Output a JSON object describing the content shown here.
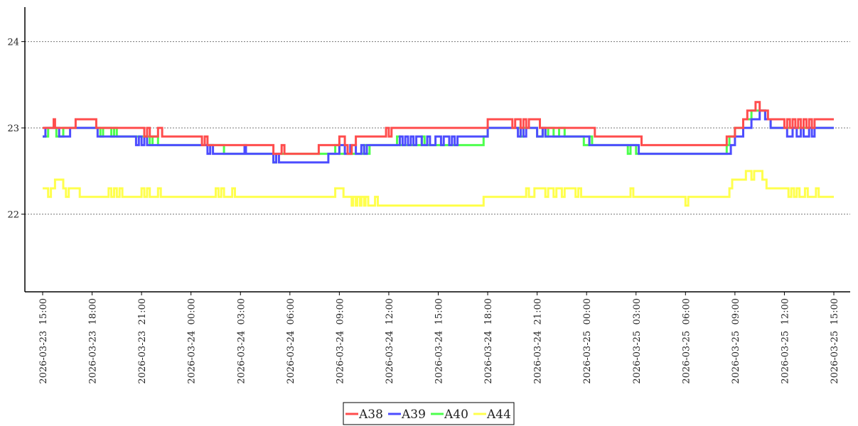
{
  "chart_data": {
    "type": "line",
    "title": "",
    "xlabel": "",
    "ylabel": "",
    "ylim": [
      21.1,
      24.4
    ],
    "yticks": [
      22,
      23,
      24
    ],
    "grid": true,
    "legend_position": "bottom-center",
    "x_tick_labels": [
      "2026-03-23  15:00",
      "2026-03-23  18:00",
      "2026-03-23  21:00",
      "2026-03-24  00:00",
      "2026-03-24  03:00",
      "2026-03-24  06:00",
      "2026-03-24  09:00",
      "2026-03-24  12:00",
      "2026-03-24  15:00",
      "2026-03-24  18:00",
      "2026-03-24  21:00",
      "2026-03-25  00:00",
      "2026-03-25  03:00",
      "2026-03-25  06:00",
      "2026-03-25  09:00",
      "2026-03-25  12:00",
      "2026-03-25  15:00"
    ],
    "series": [
      {
        "name": "A44",
        "color": "#ffff4d",
        "points": [
          [
            "2026-03-23 15:00",
            22.3
          ],
          [
            "2026-03-23 15:20",
            22.2
          ],
          [
            "2026-03-23 15:30",
            22.3
          ],
          [
            "2026-03-23 15:45",
            22.4
          ],
          [
            "2026-03-23 16:15",
            22.3
          ],
          [
            "2026-03-23 16:25",
            22.2
          ],
          [
            "2026-03-23 16:35",
            22.3
          ],
          [
            "2026-03-23 17:15",
            22.2
          ],
          [
            "2026-03-23 19:00",
            22.3
          ],
          [
            "2026-03-23 19:10",
            22.2
          ],
          [
            "2026-03-23 19:20",
            22.3
          ],
          [
            "2026-03-23 19:30",
            22.2
          ],
          [
            "2026-03-23 19:40",
            22.3
          ],
          [
            "2026-03-23 19:50",
            22.2
          ],
          [
            "2026-03-23 21:00",
            22.3
          ],
          [
            "2026-03-23 21:10",
            22.2
          ],
          [
            "2026-03-23 21:20",
            22.3
          ],
          [
            "2026-03-23 21:30",
            22.2
          ],
          [
            "2026-03-23 22:00",
            22.3
          ],
          [
            "2026-03-23 22:10",
            22.2
          ],
          [
            "2026-03-24 01:30",
            22.3
          ],
          [
            "2026-03-24 01:40",
            22.2
          ],
          [
            "2026-03-24 01:50",
            22.3
          ],
          [
            "2026-03-24 02:00",
            22.2
          ],
          [
            "2026-03-24 02:30",
            22.3
          ],
          [
            "2026-03-24 02:40",
            22.2
          ],
          [
            "2026-03-24 08:45",
            22.3
          ],
          [
            "2026-03-24 09:15",
            22.2
          ],
          [
            "2026-03-24 09:45",
            22.1
          ],
          [
            "2026-03-24 09:50",
            22.2
          ],
          [
            "2026-03-24 10:00",
            22.1
          ],
          [
            "2026-03-24 10:05",
            22.2
          ],
          [
            "2026-03-24 10:15",
            22.1
          ],
          [
            "2026-03-24 10:20",
            22.2
          ],
          [
            "2026-03-24 10:30",
            22.1
          ],
          [
            "2026-03-24 10:35",
            22.2
          ],
          [
            "2026-03-24 10:45",
            22.1
          ],
          [
            "2026-03-24 11:00",
            22.1
          ],
          [
            "2026-03-24 11:10",
            22.2
          ],
          [
            "2026-03-24 11:20",
            22.1
          ],
          [
            "2026-03-24 17:45",
            22.2
          ],
          [
            "2026-03-24 20:20",
            22.3
          ],
          [
            "2026-03-24 20:30",
            22.2
          ],
          [
            "2026-03-24 20:50",
            22.3
          ],
          [
            "2026-03-24 21:30",
            22.2
          ],
          [
            "2026-03-24 21:40",
            22.3
          ],
          [
            "2026-03-24 22:00",
            22.2
          ],
          [
            "2026-03-24 22:10",
            22.3
          ],
          [
            "2026-03-24 22:30",
            22.2
          ],
          [
            "2026-03-24 22:40",
            22.3
          ],
          [
            "2026-03-24 23:20",
            22.2
          ],
          [
            "2026-03-24 23:30",
            22.3
          ],
          [
            "2026-03-24 23:40",
            22.2
          ],
          [
            "2026-03-25 02:40",
            22.3
          ],
          [
            "2026-03-25 02:50",
            22.2
          ],
          [
            "2026-03-25 06:00",
            22.1
          ],
          [
            "2026-03-25 06:10",
            22.2
          ],
          [
            "2026-03-25 08:40",
            22.3
          ],
          [
            "2026-03-25 08:50",
            22.4
          ],
          [
            "2026-03-25 09:40",
            22.5
          ],
          [
            "2026-03-25 10:00",
            22.4
          ],
          [
            "2026-03-25 10:10",
            22.5
          ],
          [
            "2026-03-25 10:40",
            22.4
          ],
          [
            "2026-03-25 10:55",
            22.3
          ],
          [
            "2026-03-25 12:15",
            22.2
          ],
          [
            "2026-03-25 12:25",
            22.3
          ],
          [
            "2026-03-25 12:35",
            22.2
          ],
          [
            "2026-03-25 12:45",
            22.3
          ],
          [
            "2026-03-25 12:55",
            22.2
          ],
          [
            "2026-03-25 13:15",
            22.3
          ],
          [
            "2026-03-25 13:25",
            22.2
          ],
          [
            "2026-03-25 13:55",
            22.3
          ],
          [
            "2026-03-25 14:05",
            22.2
          ],
          [
            "2026-03-25 15:00",
            22.2
          ]
        ]
      },
      {
        "name": "A40",
        "color": "#4dff4d",
        "points": [
          [
            "2026-03-23 15:00",
            22.9
          ],
          [
            "2026-03-23 15:20",
            23.0
          ],
          [
            "2026-03-23 15:50",
            22.9
          ],
          [
            "2026-03-23 16:15",
            23.0
          ],
          [
            "2026-03-23 18:30",
            22.9
          ],
          [
            "2026-03-23 18:40",
            23.0
          ],
          [
            "2026-03-23 19:10",
            22.9
          ],
          [
            "2026-03-23 19:20",
            23.0
          ],
          [
            "2026-03-23 19:30",
            22.9
          ],
          [
            "2026-03-23 21:30",
            22.8
          ],
          [
            "2026-03-23 21:40",
            22.9
          ],
          [
            "2026-03-23 22:00",
            22.8
          ],
          [
            "2026-03-24 02:00",
            22.7
          ],
          [
            "2026-03-24 05:00",
            22.6
          ],
          [
            "2026-03-24 05:10",
            22.7
          ],
          [
            "2026-03-24 08:45",
            22.8
          ],
          [
            "2026-03-24 09:00",
            22.7
          ],
          [
            "2026-03-24 10:30",
            22.8
          ],
          [
            "2026-03-24 10:40",
            22.7
          ],
          [
            "2026-03-24 10:50",
            22.8
          ],
          [
            "2026-03-24 12:30",
            22.9
          ],
          [
            "2026-03-24 12:40",
            22.8
          ],
          [
            "2026-03-24 14:00",
            22.9
          ],
          [
            "2026-03-24 14:10",
            22.8
          ],
          [
            "2026-03-24 17:45",
            22.9
          ],
          [
            "2026-03-24 18:00",
            23.0
          ],
          [
            "2026-03-24 20:00",
            22.9
          ],
          [
            "2026-03-24 20:10",
            23.0
          ],
          [
            "2026-03-24 21:00",
            22.9
          ],
          [
            "2026-03-24 21:20",
            23.0
          ],
          [
            "2026-03-24 21:30",
            22.9
          ],
          [
            "2026-03-24 21:40",
            23.0
          ],
          [
            "2026-03-24 22:00",
            22.9
          ],
          [
            "2026-03-24 22:20",
            23.0
          ],
          [
            "2026-03-24 22:40",
            22.9
          ],
          [
            "2026-03-24 23:50",
            22.8
          ],
          [
            "2026-03-25 00:10",
            22.9
          ],
          [
            "2026-03-25 00:20",
            22.8
          ],
          [
            "2026-03-25 02:30",
            22.7
          ],
          [
            "2026-03-25 02:40",
            22.8
          ],
          [
            "2026-03-25 03:00",
            22.7
          ],
          [
            "2026-03-25 08:30",
            22.8
          ],
          [
            "2026-03-25 08:40",
            22.9
          ],
          [
            "2026-03-25 09:00",
            23.0
          ],
          [
            "2026-03-25 09:30",
            23.1
          ],
          [
            "2026-03-25 10:00",
            23.2
          ],
          [
            "2026-03-25 10:50",
            23.1
          ],
          [
            "2026-03-25 11:10",
            23.0
          ],
          [
            "2026-03-25 15:00",
            23.0
          ]
        ]
      },
      {
        "name": "A39",
        "color": "#4d4dff",
        "points": [
          [
            "2026-03-23 15:00",
            22.9
          ],
          [
            "2026-03-23 15:10",
            23.0
          ],
          [
            "2026-03-23 16:00",
            22.9
          ],
          [
            "2026-03-23 16:40",
            23.0
          ],
          [
            "2026-03-23 18:00",
            23.0
          ],
          [
            "2026-03-23 18:20",
            22.9
          ],
          [
            "2026-03-23 20:40",
            22.8
          ],
          [
            "2026-03-23 20:50",
            22.9
          ],
          [
            "2026-03-23 21:00",
            22.8
          ],
          [
            "2026-03-23 21:10",
            22.9
          ],
          [
            "2026-03-23 21:20",
            22.8
          ],
          [
            "2026-03-24 01:00",
            22.7
          ],
          [
            "2026-03-24 01:10",
            22.8
          ],
          [
            "2026-03-24 01:20",
            22.7
          ],
          [
            "2026-03-24 03:00",
            22.7
          ],
          [
            "2026-03-24 03:15",
            22.8
          ],
          [
            "2026-03-24 03:20",
            22.7
          ],
          [
            "2026-03-24 05:00",
            22.6
          ],
          [
            "2026-03-24 05:10",
            22.7
          ],
          [
            "2026-03-24 05:20",
            22.6
          ],
          [
            "2026-03-24 07:00",
            22.6
          ],
          [
            "2026-03-24 08:20",
            22.7
          ],
          [
            "2026-03-24 09:00",
            22.8
          ],
          [
            "2026-03-24 09:20",
            22.7
          ],
          [
            "2026-03-24 09:40",
            22.8
          ],
          [
            "2026-03-24 10:00",
            22.7
          ],
          [
            "2026-03-24 10:20",
            22.8
          ],
          [
            "2026-03-24 10:30",
            22.7
          ],
          [
            "2026-03-24 10:40",
            22.8
          ],
          [
            "2026-03-24 12:40",
            22.9
          ],
          [
            "2026-03-24 12:50",
            22.8
          ],
          [
            "2026-03-24 13:00",
            22.9
          ],
          [
            "2026-03-24 13:10",
            22.8
          ],
          [
            "2026-03-24 13:20",
            22.9
          ],
          [
            "2026-03-24 13:30",
            22.8
          ],
          [
            "2026-03-24 13:40",
            22.9
          ],
          [
            "2026-03-24 14:00",
            22.8
          ],
          [
            "2026-03-24 14:20",
            22.9
          ],
          [
            "2026-03-24 14:30",
            22.8
          ],
          [
            "2026-03-24 14:50",
            22.9
          ],
          [
            "2026-03-24 15:10",
            22.8
          ],
          [
            "2026-03-24 15:20",
            22.9
          ],
          [
            "2026-03-24 15:40",
            22.8
          ],
          [
            "2026-03-24 15:50",
            22.9
          ],
          [
            "2026-03-24 16:00",
            22.8
          ],
          [
            "2026-03-24 16:10",
            22.9
          ],
          [
            "2026-03-24 18:00",
            23.0
          ],
          [
            "2026-03-24 19:50",
            22.9
          ],
          [
            "2026-03-24 20:00",
            23.0
          ],
          [
            "2026-03-24 20:10",
            22.9
          ],
          [
            "2026-03-24 20:20",
            23.0
          ],
          [
            "2026-03-24 21:00",
            22.9
          ],
          [
            "2026-03-24 21:20",
            23.0
          ],
          [
            "2026-03-24 21:30",
            22.9
          ],
          [
            "2026-03-25 00:10",
            22.8
          ],
          [
            "2026-03-25 03:10",
            22.7
          ],
          [
            "2026-03-25 08:45",
            22.8
          ],
          [
            "2026-03-25 09:00",
            22.9
          ],
          [
            "2026-03-25 09:30",
            23.0
          ],
          [
            "2026-03-25 10:00",
            23.1
          ],
          [
            "2026-03-25 10:30",
            23.2
          ],
          [
            "2026-03-25 10:50",
            23.1
          ],
          [
            "2026-03-25 11:10",
            23.0
          ],
          [
            "2026-03-25 12:00",
            23.0
          ],
          [
            "2026-03-25 12:10",
            22.9
          ],
          [
            "2026-03-25 12:30",
            23.0
          ],
          [
            "2026-03-25 12:45",
            22.9
          ],
          [
            "2026-03-25 13:00",
            23.0
          ],
          [
            "2026-03-25 13:10",
            22.9
          ],
          [
            "2026-03-25 13:30",
            23.0
          ],
          [
            "2026-03-25 13:40",
            22.9
          ],
          [
            "2026-03-25 13:50",
            23.0
          ],
          [
            "2026-03-25 15:00",
            23.0
          ]
        ]
      },
      {
        "name": "A38",
        "color": "#ff4d4d",
        "points": [
          [
            "2026-03-23 15:00",
            23.0
          ],
          [
            "2026-03-23 15:40",
            23.1
          ],
          [
            "2026-03-23 15:45",
            23.0
          ],
          [
            "2026-03-23 17:00",
            23.1
          ],
          [
            "2026-03-23 18:00",
            23.1
          ],
          [
            "2026-03-23 18:15",
            23.0
          ],
          [
            "2026-03-23 21:10",
            22.9
          ],
          [
            "2026-03-23 21:20",
            23.0
          ],
          [
            "2026-03-23 21:30",
            22.9
          ],
          [
            "2026-03-23 22:00",
            23.0
          ],
          [
            "2026-03-23 22:15",
            22.9
          ],
          [
            "2026-03-24 00:40",
            22.8
          ],
          [
            "2026-03-24 00:50",
            22.9
          ],
          [
            "2026-03-24 01:00",
            22.8
          ],
          [
            "2026-03-24 05:00",
            22.7
          ],
          [
            "2026-03-24 05:30",
            22.8
          ],
          [
            "2026-03-24 05:40",
            22.7
          ],
          [
            "2026-03-24 07:45",
            22.8
          ],
          [
            "2026-03-24 09:00",
            22.9
          ],
          [
            "2026-03-24 09:20",
            22.8
          ],
          [
            "2026-03-24 09:30",
            22.7
          ],
          [
            "2026-03-24 09:45",
            22.8
          ],
          [
            "2026-03-24 10:00",
            22.9
          ],
          [
            "2026-03-24 11:50",
            23.0
          ],
          [
            "2026-03-24 12:00",
            22.9
          ],
          [
            "2026-03-24 12:10",
            23.0
          ],
          [
            "2026-03-24 18:00",
            23.1
          ],
          [
            "2026-03-24 19:30",
            23.0
          ],
          [
            "2026-03-24 19:40",
            23.1
          ],
          [
            "2026-03-24 20:00",
            23.0
          ],
          [
            "2026-03-24 20:10",
            23.1
          ],
          [
            "2026-03-24 20:20",
            23.0
          ],
          [
            "2026-03-24 20:30",
            23.1
          ],
          [
            "2026-03-24 21:10",
            23.0
          ],
          [
            "2026-03-25 00:30",
            22.9
          ],
          [
            "2026-03-25 03:20",
            22.8
          ],
          [
            "2026-03-25 08:30",
            22.9
          ],
          [
            "2026-03-25 09:00",
            23.0
          ],
          [
            "2026-03-25 09:30",
            23.1
          ],
          [
            "2026-03-25 09:45",
            23.2
          ],
          [
            "2026-03-25 10:15",
            23.3
          ],
          [
            "2026-03-25 10:30",
            23.2
          ],
          [
            "2026-03-25 11:00",
            23.1
          ],
          [
            "2026-03-25 12:00",
            23.0
          ],
          [
            "2026-03-25 12:10",
            23.1
          ],
          [
            "2026-03-25 12:20",
            23.0
          ],
          [
            "2026-03-25 12:30",
            23.1
          ],
          [
            "2026-03-25 12:40",
            23.0
          ],
          [
            "2026-03-25 12:50",
            23.1
          ],
          [
            "2026-03-25 13:00",
            23.0
          ],
          [
            "2026-03-25 13:10",
            23.1
          ],
          [
            "2026-03-25 13:20",
            23.0
          ],
          [
            "2026-03-25 13:30",
            23.1
          ],
          [
            "2026-03-25 13:40",
            23.0
          ],
          [
            "2026-03-25 13:50",
            23.1
          ],
          [
            "2026-03-25 15:00",
            23.1
          ]
        ]
      }
    ],
    "legend": [
      "A38",
      "A39",
      "A40",
      "A44"
    ]
  }
}
